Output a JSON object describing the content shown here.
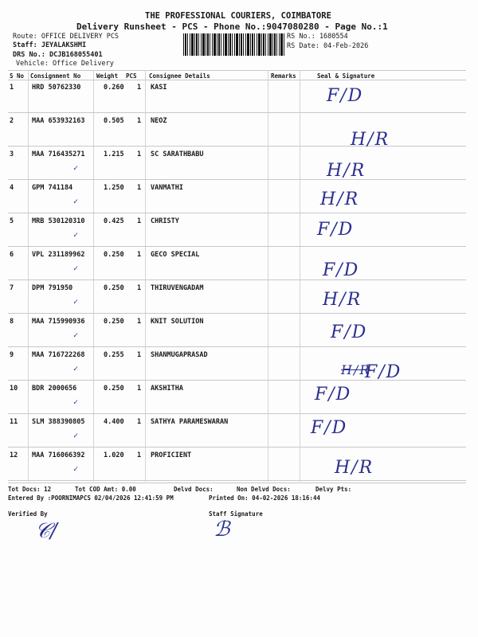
{
  "header": {
    "company": "THE PROFESSIONAL COURIERS, COIMBATORE",
    "title": "Delivery Runsheet - PCS - Phone No.:9047080280 - Page No.:1",
    "route": "Route: OFFICE DELIVERY PCS",
    "staff": "Staff: JEYALAKSHMI",
    "drs_no": "DRS No.: DCJB168055401",
    "vehicle": "Vehicle: Office Delivery",
    "rs_no": "RS No.: 1680554",
    "rs_date": "RS Date: 04-Feb-2026"
  },
  "table": {
    "columns": [
      "S No",
      "Consignment No",
      "Weight",
      "PCS",
      "Consignee Details",
      "Remarks",
      "Seal & Signature"
    ],
    "rows": [
      {
        "sno": "1",
        "consignment": "HRD 50762330",
        "weight": "0.260",
        "pcs": "1",
        "consignee": "KASI",
        "seal": "F/D"
      },
      {
        "sno": "2",
        "consignment": "MAA 653932163",
        "weight": "0.505",
        "pcs": "1",
        "consignee": "NEOZ",
        "seal": "H/R"
      },
      {
        "sno": "3",
        "consignment": "MAA 716435271",
        "weight": "1.215",
        "pcs": "1",
        "consignee": "SC SARATHBABU",
        "seal": "H/R"
      },
      {
        "sno": "4",
        "consignment": "GPM 741184",
        "weight": "1.250",
        "pcs": "1",
        "consignee": "VANMATHI",
        "seal": "H/R"
      },
      {
        "sno": "5",
        "consignment": "MRB 530120310",
        "weight": "0.425",
        "pcs": "1",
        "consignee": "CHRISTY",
        "seal": "F/D"
      },
      {
        "sno": "6",
        "consignment": "VPL 231189962",
        "weight": "0.250",
        "pcs": "1",
        "consignee": "GECO SPECIAL",
        "seal": "F/D"
      },
      {
        "sno": "7",
        "consignment": "DPM 791950",
        "weight": "0.250",
        "pcs": "1",
        "consignee": "THIRUVENGADAM",
        "seal": "H/R"
      },
      {
        "sno": "8",
        "consignment": "MAA 715990936",
        "weight": "0.250",
        "pcs": "1",
        "consignee": "KNIT SOLUTION",
        "seal": "F/D"
      },
      {
        "sno": "9",
        "consignment": "MAA 716722268",
        "weight": "0.255",
        "pcs": "1",
        "consignee": "SHANMUGAPRASAD",
        "seal": "F/D",
        "seal_struck": "H/R"
      },
      {
        "sno": "10",
        "consignment": "BDR 2000656",
        "weight": "0.250",
        "pcs": "1",
        "consignee": "AKSHITHA",
        "seal": "F/D"
      },
      {
        "sno": "11",
        "consignment": "SLM 388390805",
        "weight": "4.400",
        "pcs": "1",
        "consignee": "SATHYA PARAMESWARAN",
        "seal": "F/D"
      },
      {
        "sno": "12",
        "consignment": "MAA 716066392",
        "weight": "1.020",
        "pcs": "1",
        "consignee": "PROFICIENT",
        "seal": "H/R"
      }
    ]
  },
  "footer": {
    "tot_docs": "Tot Docs:  12",
    "tot_cod": "Tot COD Amt:    0.00",
    "delvd": "Delvd Docs:",
    "non_delvd": "Non Delvd Docs:",
    "delvy_pts": "Delvy Pts:",
    "entered_by": "Entered By :POORNIMAPCS 02/04/2026 12:41:59 PM",
    "printed_on": "Printed On: 04-02-2026 18:16:44",
    "verified_by": "Verified By",
    "staff_signature": "Staff Signature"
  },
  "colors": {
    "ink": "#2b2f8f",
    "text": "#1a1a1a"
  }
}
